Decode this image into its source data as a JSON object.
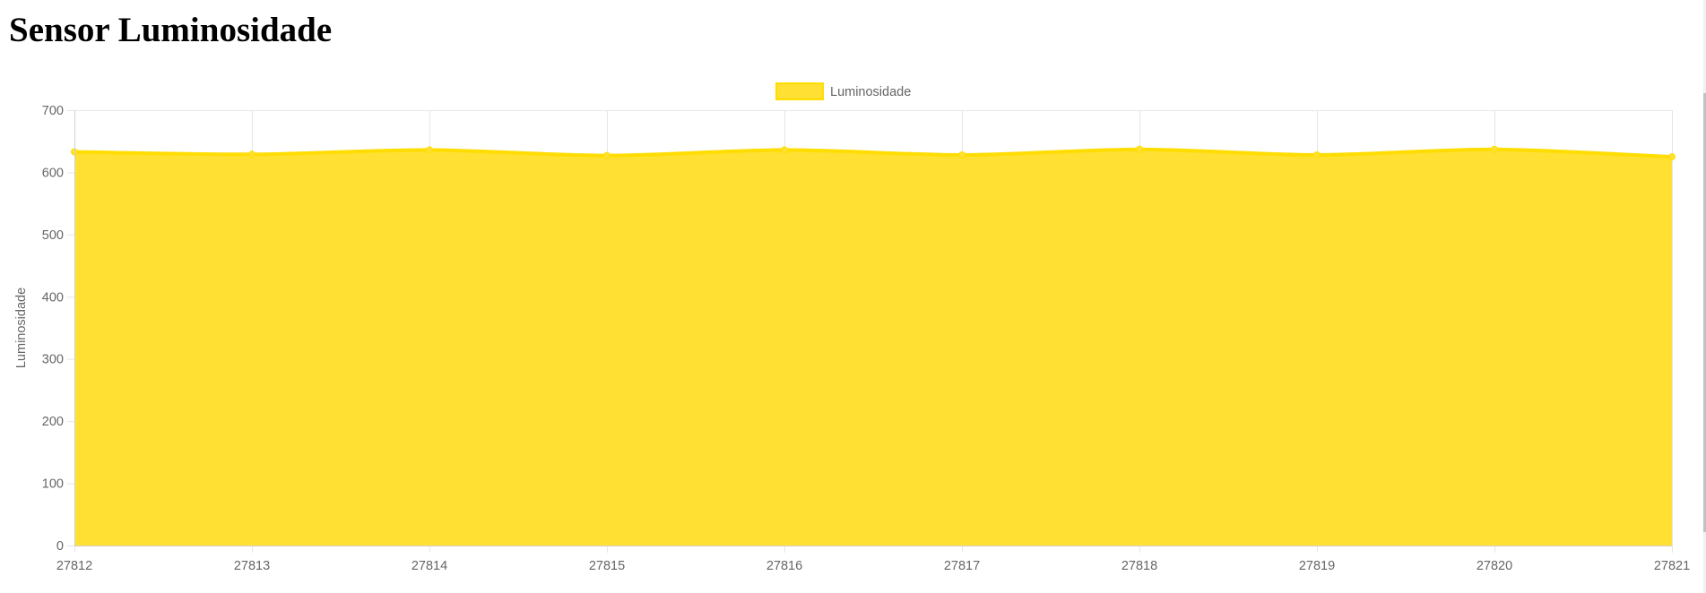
{
  "page": {
    "title": "Sensor Luminosidade"
  },
  "chart_data": {
    "type": "area",
    "title": "",
    "xlabel": "",
    "ylabel": "Luminosidade",
    "x": [
      27812,
      27813,
      27814,
      27815,
      27816,
      27817,
      27818,
      27819,
      27820,
      27821
    ],
    "series": [
      {
        "name": "Luminosidade",
        "values": [
          633,
          629,
          636,
          627,
          636,
          628,
          637,
          628,
          637,
          625
        ],
        "color": "#ffe033",
        "border_color": "#ffdd00"
      }
    ],
    "ylim": [
      0,
      700
    ],
    "yticks": [
      0,
      100,
      200,
      300,
      400,
      500,
      600,
      700
    ],
    "grid": true,
    "legend_position": "top"
  },
  "colors": {
    "fill": "#ffe033",
    "line": "#ffdd00",
    "grid": "#e6e6e6",
    "axis_text": "#666666"
  }
}
